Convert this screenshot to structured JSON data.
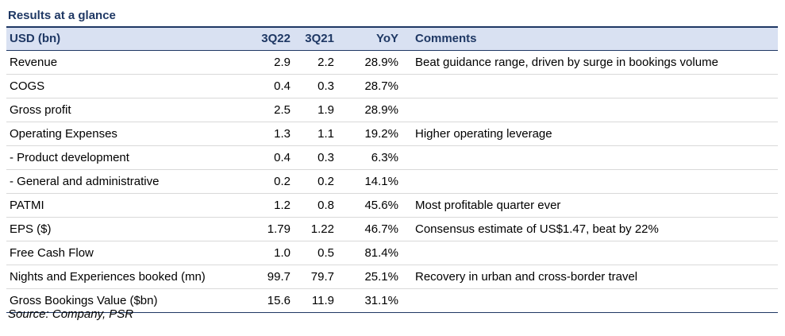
{
  "title": "Results at a glance",
  "headers": {
    "label": "USD (bn)",
    "col1": "3Q22",
    "col2": "3Q21",
    "col3": "YoY",
    "comments": "Comments"
  },
  "rows": [
    {
      "label": "Revenue",
      "q22": "2.9",
      "q21": "2.2",
      "yoy": "28.9%",
      "comment": "Beat guidance range, driven by surge in bookings volume"
    },
    {
      "label": "COGS",
      "q22": "0.4",
      "q21": "0.3",
      "yoy": "28.7%",
      "comment": ""
    },
    {
      "label": "Gross profit",
      "q22": "2.5",
      "q21": "1.9",
      "yoy": "28.9%",
      "comment": ""
    },
    {
      "label": "Operating Expenses",
      "q22": "1.3",
      "q21": "1.1",
      "yoy": "19.2%",
      "comment": "Higher operating leverage"
    },
    {
      "label": " - Product development",
      "q22": "0.4",
      "q21": "0.3",
      "yoy": "6.3%",
      "comment": ""
    },
    {
      "label": " - General and administrative",
      "q22": "0.2",
      "q21": "0.2",
      "yoy": "14.1%",
      "comment": ""
    },
    {
      "label": "PATMI",
      "q22": "1.2",
      "q21": "0.8",
      "yoy": "45.6%",
      "comment": "Most profitable quarter ever"
    },
    {
      "label": "EPS ($)",
      "q22": "1.79",
      "q21": "1.22",
      "yoy": "46.7%",
      "comment": "Consensus estimate of US$1.47, beat by 22%"
    },
    {
      "label": "Free Cash Flow",
      "q22": "1.0",
      "q21": "0.5",
      "yoy": "81.4%",
      "comment": ""
    },
    {
      "label": "Nights and Experiences booked (mn)",
      "q22": "99.7",
      "q21": "79.7",
      "yoy": "25.1%",
      "comment": "Recovery in urban and cross-border travel"
    },
    {
      "label": "Gross Bookings Value ($bn)",
      "q22": "15.6",
      "q21": "11.9",
      "yoy": "31.1%",
      "comment": ""
    }
  ],
  "source": "Source: Company, PSR"
}
